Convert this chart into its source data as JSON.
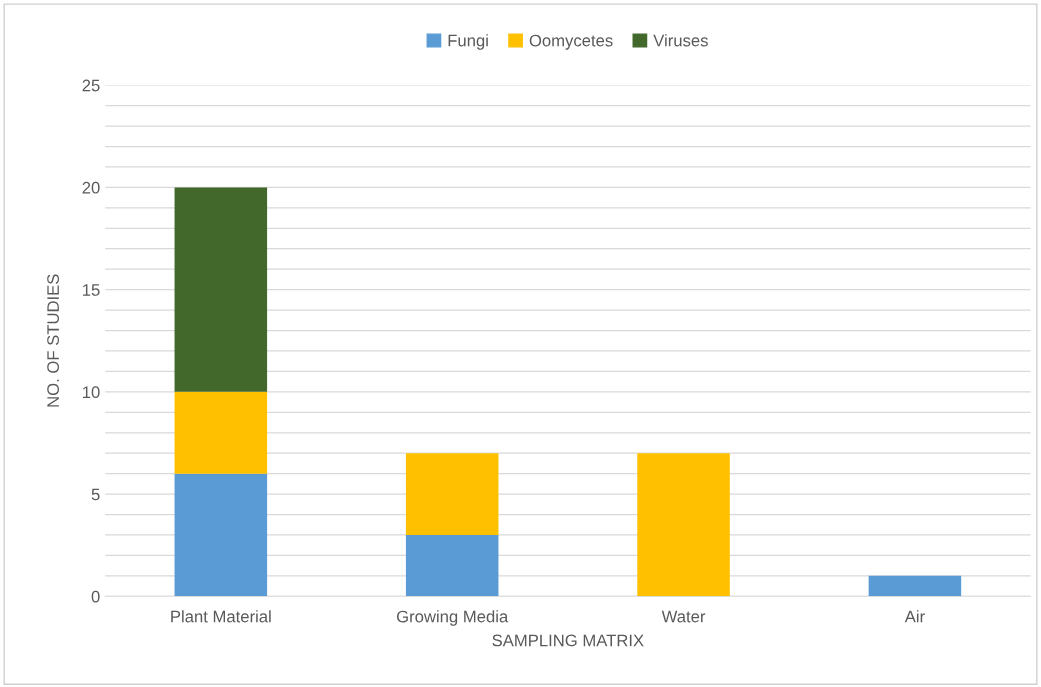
{
  "chart_data": {
    "type": "bar",
    "stacked": true,
    "xlabel": "SAMPLING MATRIX",
    "ylabel": "NO. OF STUDIES",
    "categories": [
      "Plant Material",
      "Growing Media",
      "Water",
      "Air"
    ],
    "series": [
      {
        "name": "Fungi",
        "color": "#5b9bd5",
        "values": [
          6,
          3,
          0,
          1
        ]
      },
      {
        "name": "Oomycetes",
        "color": "#ffc000",
        "values": [
          4,
          4,
          7,
          0
        ]
      },
      {
        "name": "Viruses",
        "color": "#43682b",
        "values": [
          10,
          0,
          0,
          0
        ]
      }
    ],
    "ylim": [
      0,
      25
    ],
    "yticks": [
      0,
      {
        "value": 1,
        "label": null
      },
      {
        "value": 2,
        "label": null
      },
      {
        "value": 3,
        "label": null
      },
      {
        "value": 4,
        "label": null
      },
      5,
      {
        "value": 6,
        "label": null
      },
      {
        "value": 7,
        "label": null
      },
      {
        "value": 8,
        "label": null
      },
      {
        "value": 9,
        "label": null
      },
      10,
      {
        "value": 11,
        "label": null
      },
      {
        "value": 12,
        "label": null
      },
      {
        "value": 13,
        "label": null
      },
      {
        "value": 14,
        "label": null
      },
      15,
      {
        "value": 16,
        "label": null
      },
      {
        "value": 17,
        "label": null
      },
      {
        "value": 18,
        "label": null
      },
      {
        "value": 19,
        "label": null
      },
      20,
      {
        "value": 21,
        "label": null
      },
      {
        "value": 22,
        "label": null
      },
      {
        "value": 23,
        "label": null
      },
      {
        "value": 24,
        "label": null
      },
      25
    ],
    "grid": "y",
    "legend": "top"
  }
}
